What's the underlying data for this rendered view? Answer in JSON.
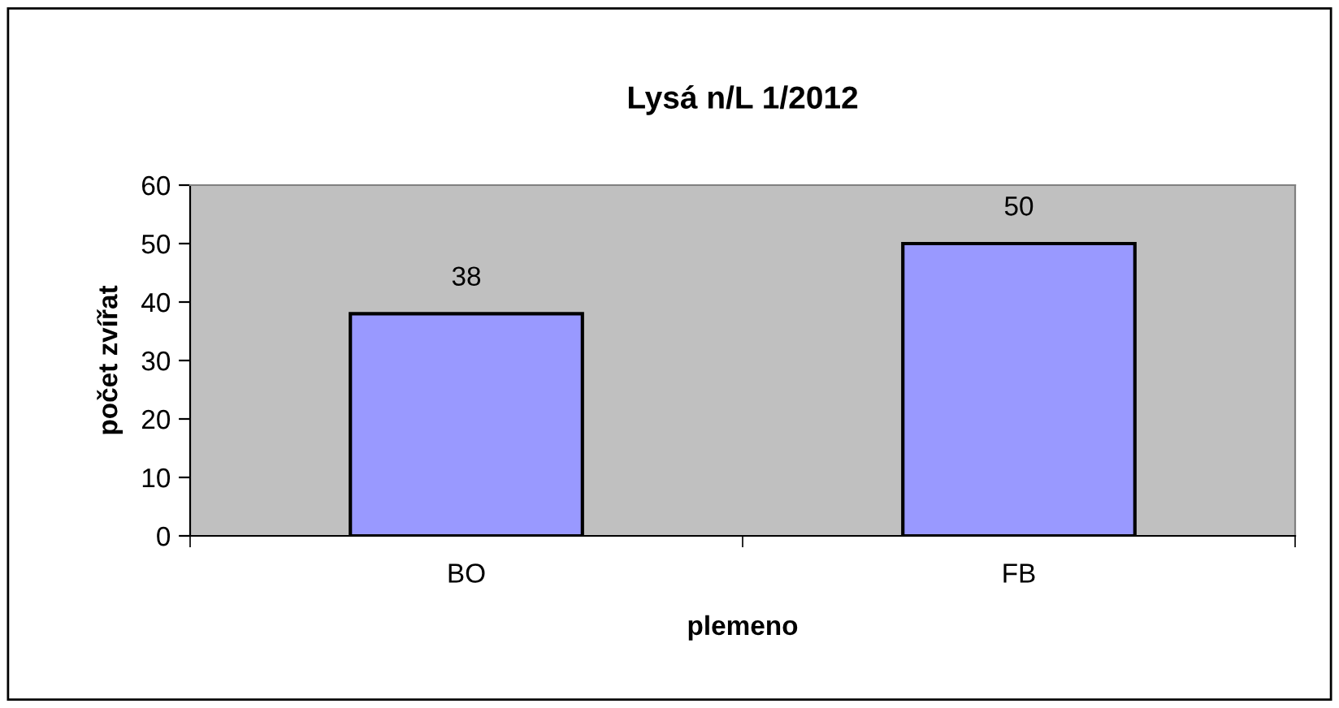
{
  "chart_data": {
    "type": "bar",
    "title": "Lysá n/L 1/2012",
    "xlabel": "plemeno",
    "ylabel": "počet zvířat",
    "categories": [
      "BO",
      "FB"
    ],
    "series": [
      {
        "color": "#9999ff",
        "values": [
          38,
          50
        ]
      }
    ],
    "ylim": [
      0,
      60
    ],
    "yticks": [
      0,
      10,
      20,
      30,
      40,
      50,
      60
    ],
    "grid": false,
    "legend": false,
    "data_labels": true
  }
}
